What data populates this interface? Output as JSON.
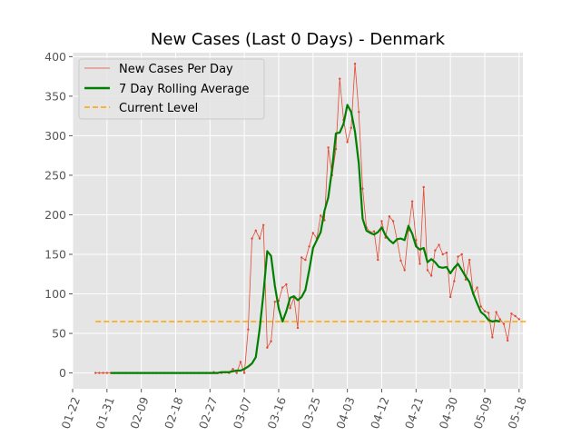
{
  "chart_data": {
    "type": "line",
    "title": "New Cases (Last 0 Days) - Denmark",
    "xlabel": "",
    "ylabel": "",
    "ylim": [
      -20,
      405
    ],
    "xlim_days_from_0122": [
      0,
      118
    ],
    "grid": true,
    "legend_placement": "top-left",
    "y_ticks": [
      0,
      50,
      100,
      150,
      200,
      250,
      300,
      350,
      400
    ],
    "x_tick_labels": [
      "01-22",
      "01-31",
      "02-09",
      "02-18",
      "02-27",
      "03-07",
      "03-16",
      "03-25",
      "04-03",
      "04-12",
      "04-21",
      "04-30",
      "05-09",
      "05-18"
    ],
    "x_tick_days": [
      0,
      9,
      18,
      27,
      36,
      45,
      54,
      63,
      72,
      81,
      90,
      99,
      108,
      117
    ],
    "series": [
      {
        "name": "New Cases Per Day",
        "color": "#e24a33",
        "start_date": "01-28",
        "values": [
          0,
          0,
          0,
          0,
          0,
          0,
          0,
          0,
          0,
          0,
          0,
          0,
          0,
          0,
          0,
          0,
          0,
          0,
          0,
          0,
          0,
          0,
          0,
          0,
          0,
          0,
          0,
          0,
          0,
          0,
          0,
          1,
          0,
          0,
          1,
          0,
          5,
          0,
          14,
          0,
          55,
          170,
          180,
          170,
          187,
          32,
          40,
          90,
          91,
          108,
          112,
          82,
          95,
          57,
          146,
          143,
          160,
          177,
          170,
          199,
          193,
          285,
          250,
          283,
          372,
          320,
          292,
          310,
          391,
          330,
          233,
          184,
          178,
          179,
          143,
          192,
          171,
          198,
          192,
          169,
          142,
          130,
          180,
          217,
          168,
          138,
          235,
          130,
          123,
          155,
          162,
          150,
          152,
          96,
          116,
          147,
          150,
          118,
          143,
          100,
          108,
          84,
          78,
          76,
          45,
          77,
          68,
          62,
          41,
          75,
          72,
          68
        ],
        "marker": "dot"
      },
      {
        "name": "7 Day Rolling Average",
        "color": "#008000",
        "start_date": "02-01",
        "values": [
          0,
          0,
          0,
          0,
          0,
          0,
          0,
          0,
          0,
          0,
          0,
          0,
          0,
          0,
          0,
          0,
          0,
          0,
          0,
          0,
          0,
          0,
          0,
          0,
          0,
          0,
          0,
          0,
          0,
          1,
          1,
          1,
          2,
          3,
          3,
          5,
          8,
          12,
          20,
          55,
          100,
          154,
          148,
          110,
          82,
          65,
          78,
          95,
          97,
          92,
          96,
          105,
          130,
          158,
          168,
          178,
          205,
          222,
          258,
          303,
          304,
          315,
          339,
          330,
          305,
          265,
          195,
          180,
          177,
          175,
          178,
          184,
          174,
          168,
          164,
          169,
          170,
          168,
          186,
          176,
          160,
          156,
          158,
          140,
          144,
          140,
          134,
          133,
          134,
          126,
          133,
          138,
          130,
          122,
          115,
          100,
          88,
          77,
          73,
          67,
          65,
          66,
          65
        ]
      },
      {
        "name": "Current Level",
        "color": "#ffa500",
        "value": 65,
        "x_start_date": "01-28",
        "x_end_date": "05-20",
        "dashed": true
      }
    ]
  }
}
